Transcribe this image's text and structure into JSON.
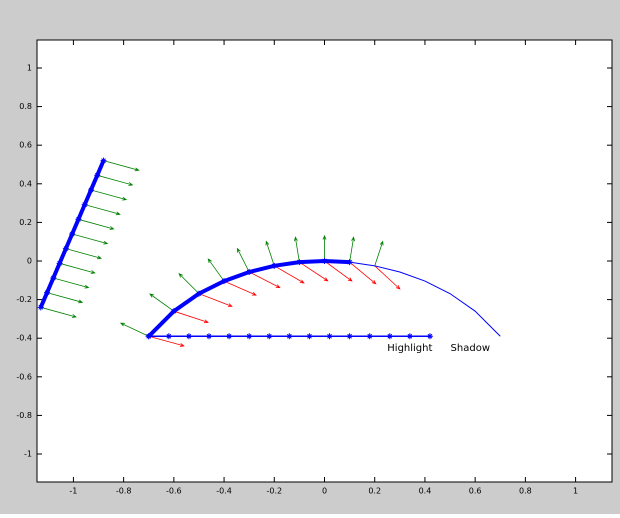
{
  "chart_data": {
    "type": "line",
    "xlim": [
      -1.145,
      1.145
    ],
    "ylim": [
      -1.145,
      1.145
    ],
    "xticks": [
      -1,
      -0.8,
      -0.6,
      -0.4,
      -0.2,
      0,
      0.2,
      0.4,
      0.6,
      0.8,
      1
    ],
    "yticks": [
      -1,
      -0.8,
      -0.6,
      -0.4,
      -0.2,
      0,
      0.2,
      0.4,
      0.6,
      0.8,
      1
    ],
    "annotations": [
      {
        "text": "Highlight",
        "x": 0.25,
        "y": -0.452
      },
      {
        "text": "Shadow",
        "x": 0.502,
        "y": -0.452
      }
    ],
    "series": [
      {
        "color": "#0000ff",
        "linewidth": 1,
        "marker": "none",
        "x": [
          -0.7,
          -0.6,
          -0.5,
          -0.4,
          -0.3,
          -0.2,
          -0.1,
          0,
          0.1,
          0.2,
          0.3,
          0.4,
          0.5,
          0.6,
          0.7
        ],
        "y": [
          -0.39,
          -0.26,
          -0.169,
          -0.104,
          -0.057,
          -0.025,
          -0.006,
          0,
          -0.006,
          -0.025,
          -0.057,
          -0.104,
          -0.169,
          -0.26,
          -0.39
        ]
      },
      {
        "color": "#0000ff",
        "linewidth": 4,
        "marker": "star",
        "x": [
          -0.7,
          -0.6,
          -0.5,
          -0.4,
          -0.3,
          -0.2,
          -0.1,
          0,
          0.1
        ],
        "y": [
          -0.39,
          -0.26,
          -0.169,
          -0.104,
          -0.057,
          -0.025,
          -0.006,
          0,
          -0.006
        ]
      },
      {
        "color": "#0000ff",
        "linewidth": 4,
        "marker": "star",
        "x": [
          -1.13,
          -1.105,
          -1.08,
          -1.055,
          -1.03,
          -1.005,
          -0.98,
          -0.955,
          -0.93,
          -0.905,
          -0.88
        ],
        "y": [
          -0.24,
          -0.164,
          -0.088,
          -0.012,
          0.064,
          0.14,
          0.216,
          0.292,
          0.368,
          0.444,
          0.52
        ]
      },
      {
        "color": "#0000ff",
        "linewidth": 1.5,
        "marker": "star",
        "x": [
          -0.7,
          -0.62,
          -0.54,
          -0.46,
          -0.38,
          -0.3,
          -0.22,
          -0.14,
          -0.06,
          0.02,
          0.1,
          0.18,
          0.26,
          0.34,
          0.42
        ],
        "y": [
          -0.39,
          -0.39,
          -0.39,
          -0.39,
          -0.39,
          -0.39,
          -0.39,
          -0.39,
          -0.39,
          -0.39,
          -0.39,
          -0.39,
          -0.39,
          -0.39,
          -0.39
        ]
      }
    ],
    "quivers": [
      {
        "color": "#008000",
        "x": [
          -1.13,
          -1.105,
          -1.08,
          -1.055,
          -1.03,
          -1.005,
          -0.98,
          -0.955,
          -0.93,
          -0.905,
          -0.88
        ],
        "y": [
          -0.24,
          -0.164,
          -0.088,
          -0.012,
          0.064,
          0.14,
          0.216,
          0.292,
          0.368,
          0.444,
          0.52
        ],
        "u": [
          0.14,
          0.14,
          0.14,
          0.14,
          0.14,
          0.14,
          0.14,
          0.14,
          0.14,
          0.14,
          0.14
        ],
        "v": [
          -0.05,
          -0.05,
          -0.05,
          -0.05,
          -0.05,
          -0.05,
          -0.05,
          -0.05,
          -0.05,
          -0.05,
          -0.05
        ]
      },
      {
        "color": "#008000",
        "x": [
          -0.7,
          -0.6,
          -0.5,
          -0.4,
          -0.3,
          -0.2,
          -0.1,
          0,
          0.1,
          0.2
        ],
        "y": [
          -0.39,
          -0.26,
          -0.169,
          -0.104,
          -0.057,
          -0.025,
          -0.006,
          0,
          -0.006,
          -0.025
        ],
        "u": [
          -0.111,
          -0.095,
          -0.079,
          -0.063,
          -0.047,
          -0.032,
          -0.016,
          0,
          0.016,
          0.032
        ],
        "v": [
          0.068,
          0.089,
          0.103,
          0.114,
          0.121,
          0.126,
          0.129,
          0.13,
          0.129,
          0.126
        ]
      },
      {
        "color": "#ff0000",
        "x": [
          -0.7,
          -0.6,
          -0.5,
          -0.4,
          -0.3,
          -0.2,
          -0.1,
          0,
          0.1,
          0.2
        ],
        "y": [
          -0.39,
          -0.26,
          -0.169,
          -0.104,
          -0.057,
          -0.025,
          -0.006,
          0,
          -0.006,
          -0.025
        ],
        "u": [
          0.14,
          0.136,
          0.131,
          0.127,
          0.122,
          0.118,
          0.113,
          0.109,
          0.104,
          0.1
        ],
        "v": [
          -0.05,
          -0.058,
          -0.066,
          -0.073,
          -0.081,
          -0.089,
          -0.097,
          -0.104,
          -0.112,
          -0.12
        ]
      }
    ]
  }
}
